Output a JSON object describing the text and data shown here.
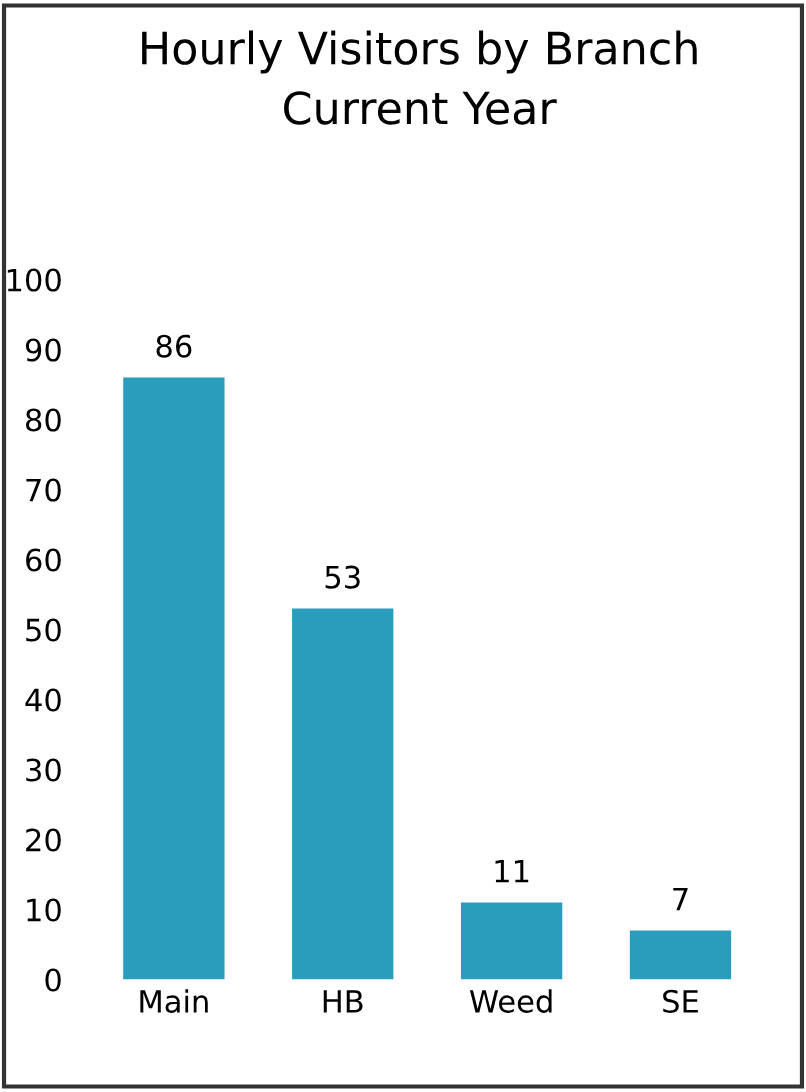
{
  "chart_data": {
    "type": "bar",
    "title": "Hourly Visitors by Branch\nCurrent Year",
    "categories": [
      "Main",
      "HB",
      "Weed",
      "SE"
    ],
    "values": [
      86,
      53,
      11,
      7
    ],
    "color": "#2a9cbc",
    "ylim": [
      0,
      100
    ],
    "yticks": [
      0,
      10,
      20,
      30,
      40,
      50,
      60,
      70,
      80,
      90,
      100
    ],
    "data_labels": true,
    "grid": false,
    "legend": false
  }
}
